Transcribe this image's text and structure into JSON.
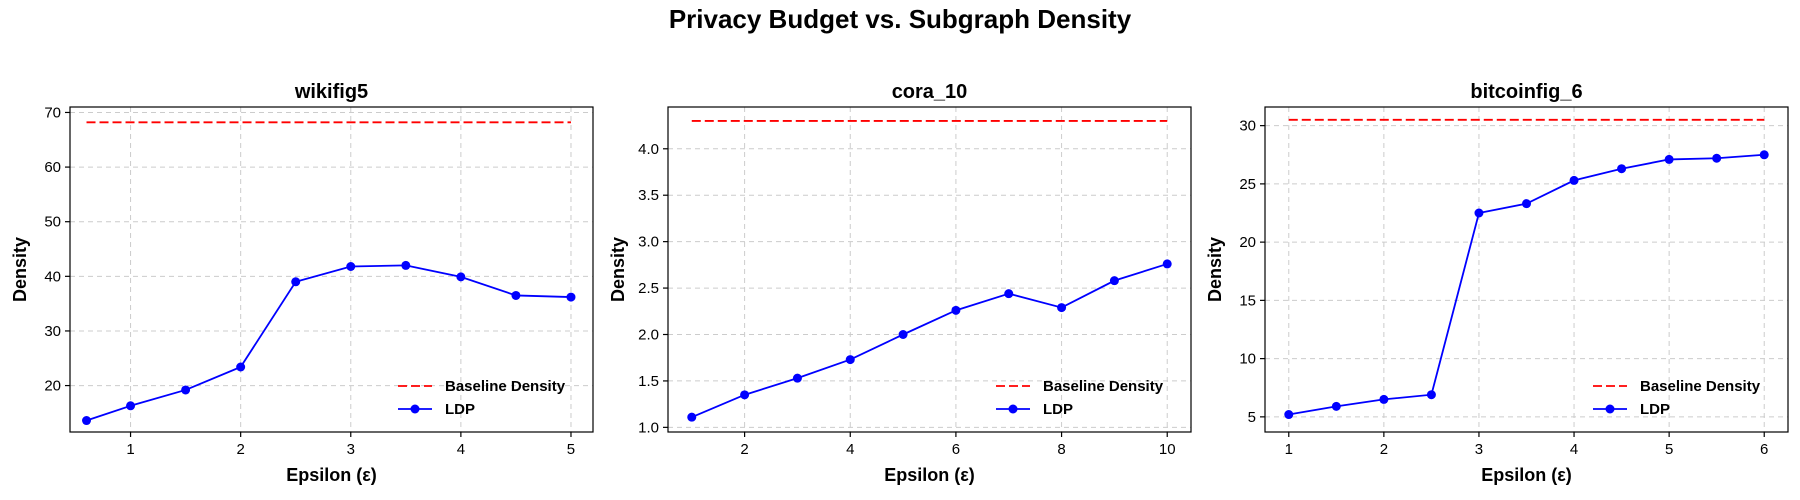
{
  "figure": {
    "title": "Privacy Budget vs. Subgraph Density"
  },
  "colors": {
    "ldp": "#0000ff",
    "baseline": "#ff0000",
    "grid": "#cccccc",
    "axes": "#000000"
  },
  "chart_data": [
    {
      "type": "line",
      "title": "wikifig5",
      "xlabel": "Epsilon (ε)",
      "ylabel": "Density",
      "xlim": [
        0.45,
        5.2
      ],
      "ylim": [
        11.5,
        71
      ],
      "xticks": [
        1,
        2,
        3,
        4,
        5
      ],
      "xtick_labels": [
        "1",
        "2",
        "3",
        "4",
        "5"
      ],
      "yticks": [
        20,
        30,
        40,
        50,
        60,
        70
      ],
      "ytick_labels": [
        "20",
        "30",
        "40",
        "50",
        "60",
        "70"
      ],
      "grid": true,
      "legend_position": "lower-right",
      "series": [
        {
          "name": "Baseline Density",
          "style": "dashed",
          "color": "#ff0000",
          "x": [
            0.6,
            5
          ],
          "y": [
            68.2,
            68.2
          ]
        },
        {
          "name": "LDP",
          "style": "solid-marker",
          "color": "#0000ff",
          "x": [
            0.6,
            1.0,
            1.5,
            2.0,
            2.5,
            3.0,
            3.5,
            4.0,
            4.5,
            5.0
          ],
          "y": [
            13.6,
            16.3,
            19.2,
            23.4,
            39.0,
            41.8,
            42.0,
            39.9,
            36.5,
            36.2
          ]
        }
      ]
    },
    {
      "type": "line",
      "title": "cora_10",
      "xlabel": "Epsilon (ε)",
      "ylabel": "Density",
      "xlim": [
        0.55,
        10.45
      ],
      "ylim": [
        0.95,
        4.45
      ],
      "xticks": [
        2,
        4,
        6,
        8,
        10
      ],
      "xtick_labels": [
        "2",
        "4",
        "6",
        "8",
        "10"
      ],
      "yticks": [
        1.0,
        1.5,
        2.0,
        2.5,
        3.0,
        3.5,
        4.0
      ],
      "ytick_labels": [
        "1.0",
        "1.5",
        "2.0",
        "2.5",
        "3.0",
        "3.5",
        "4.0"
      ],
      "grid": true,
      "legend_position": "lower-right",
      "series": [
        {
          "name": "Baseline Density",
          "style": "dashed",
          "color": "#ff0000",
          "x": [
            1,
            10
          ],
          "y": [
            4.3,
            4.3
          ]
        },
        {
          "name": "LDP",
          "style": "solid-marker",
          "color": "#0000ff",
          "x": [
            1,
            2,
            3,
            4,
            5,
            6,
            7,
            8,
            9,
            10
          ],
          "y": [
            1.11,
            1.35,
            1.53,
            1.73,
            2.0,
            2.26,
            2.44,
            2.29,
            2.58,
            2.76
          ]
        }
      ]
    },
    {
      "type": "line",
      "title": "bitcoinfig_6",
      "xlabel": "Epsilon (ε)",
      "ylabel": "Density",
      "xlim": [
        0.75,
        6.25
      ],
      "ylim": [
        3.7,
        31.6
      ],
      "xticks": [
        1,
        2,
        3,
        4,
        5,
        6
      ],
      "xtick_labels": [
        "1",
        "2",
        "3",
        "4",
        "5",
        "6"
      ],
      "yticks": [
        5,
        10,
        15,
        20,
        25,
        30
      ],
      "ytick_labels": [
        "5",
        "10",
        "15",
        "20",
        "25",
        "30"
      ],
      "grid": true,
      "legend_position": "lower-right",
      "series": [
        {
          "name": "Baseline Density",
          "style": "dashed",
          "color": "#ff0000",
          "x": [
            1,
            6
          ],
          "y": [
            30.5,
            30.5
          ]
        },
        {
          "name": "LDP",
          "style": "solid-marker",
          "color": "#0000ff",
          "x": [
            1.0,
            1.5,
            2.0,
            2.5,
            3.0,
            3.5,
            4.0,
            4.5,
            5.0,
            5.5,
            6.0
          ],
          "y": [
            5.2,
            5.9,
            6.5,
            6.9,
            22.5,
            23.3,
            25.3,
            26.3,
            27.1,
            27.2,
            27.5
          ]
        }
      ]
    }
  ]
}
